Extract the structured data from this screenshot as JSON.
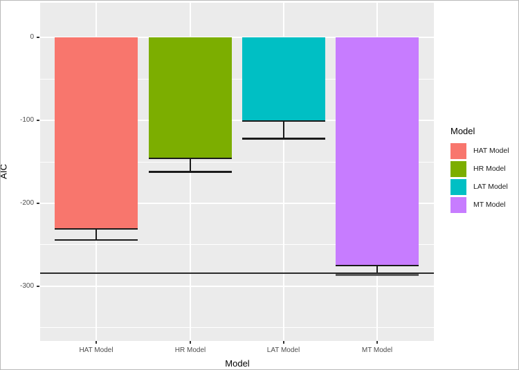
{
  "figure": {
    "y_axis_title": "AIC",
    "x_axis_title": "Model"
  },
  "chart_data": {
    "type": "bar",
    "title": "",
    "xlabel": "Model",
    "ylabel": "AIC",
    "categories": [
      "HAT Model",
      "HR Model",
      "LAT Model",
      "MT Model"
    ],
    "values": [
      -231,
      -146,
      -101,
      -275
    ],
    "error_bars": {
      "ymax": [
        -231,
        -146,
        -101,
        -275
      ],
      "ymin": [
        -244,
        -162,
        -122,
        -287
      ]
    },
    "reference_line_y": -284,
    "bar_colors": [
      "#F8766D",
      "#7CAE00",
      "#00BFC4",
      "#C77CFF"
    ],
    "yticks": [
      0,
      -100,
      -200,
      -300
    ],
    "ytick_labels": [
      "0",
      "-100",
      "-200",
      "-300"
    ],
    "minor_yticks": [
      -50,
      -150,
      -250,
      -350
    ],
    "ylim": [
      44,
      -367
    ],
    "grid": true,
    "panel_background": "#EBEBEB",
    "gridline_color": "#FFFFFF",
    "tick_label_color": "#4D4D4D",
    "legend_position": "right",
    "legend": {
      "title": "Model",
      "entries": [
        {
          "label": "HAT Model",
          "color": "#F8766D"
        },
        {
          "label": "HR Model",
          "color": "#7CAE00"
        },
        {
          "label": "LAT Model",
          "color": "#00BFC4"
        },
        {
          "label": "MT Model",
          "color": "#C77CFF"
        }
      ]
    }
  }
}
